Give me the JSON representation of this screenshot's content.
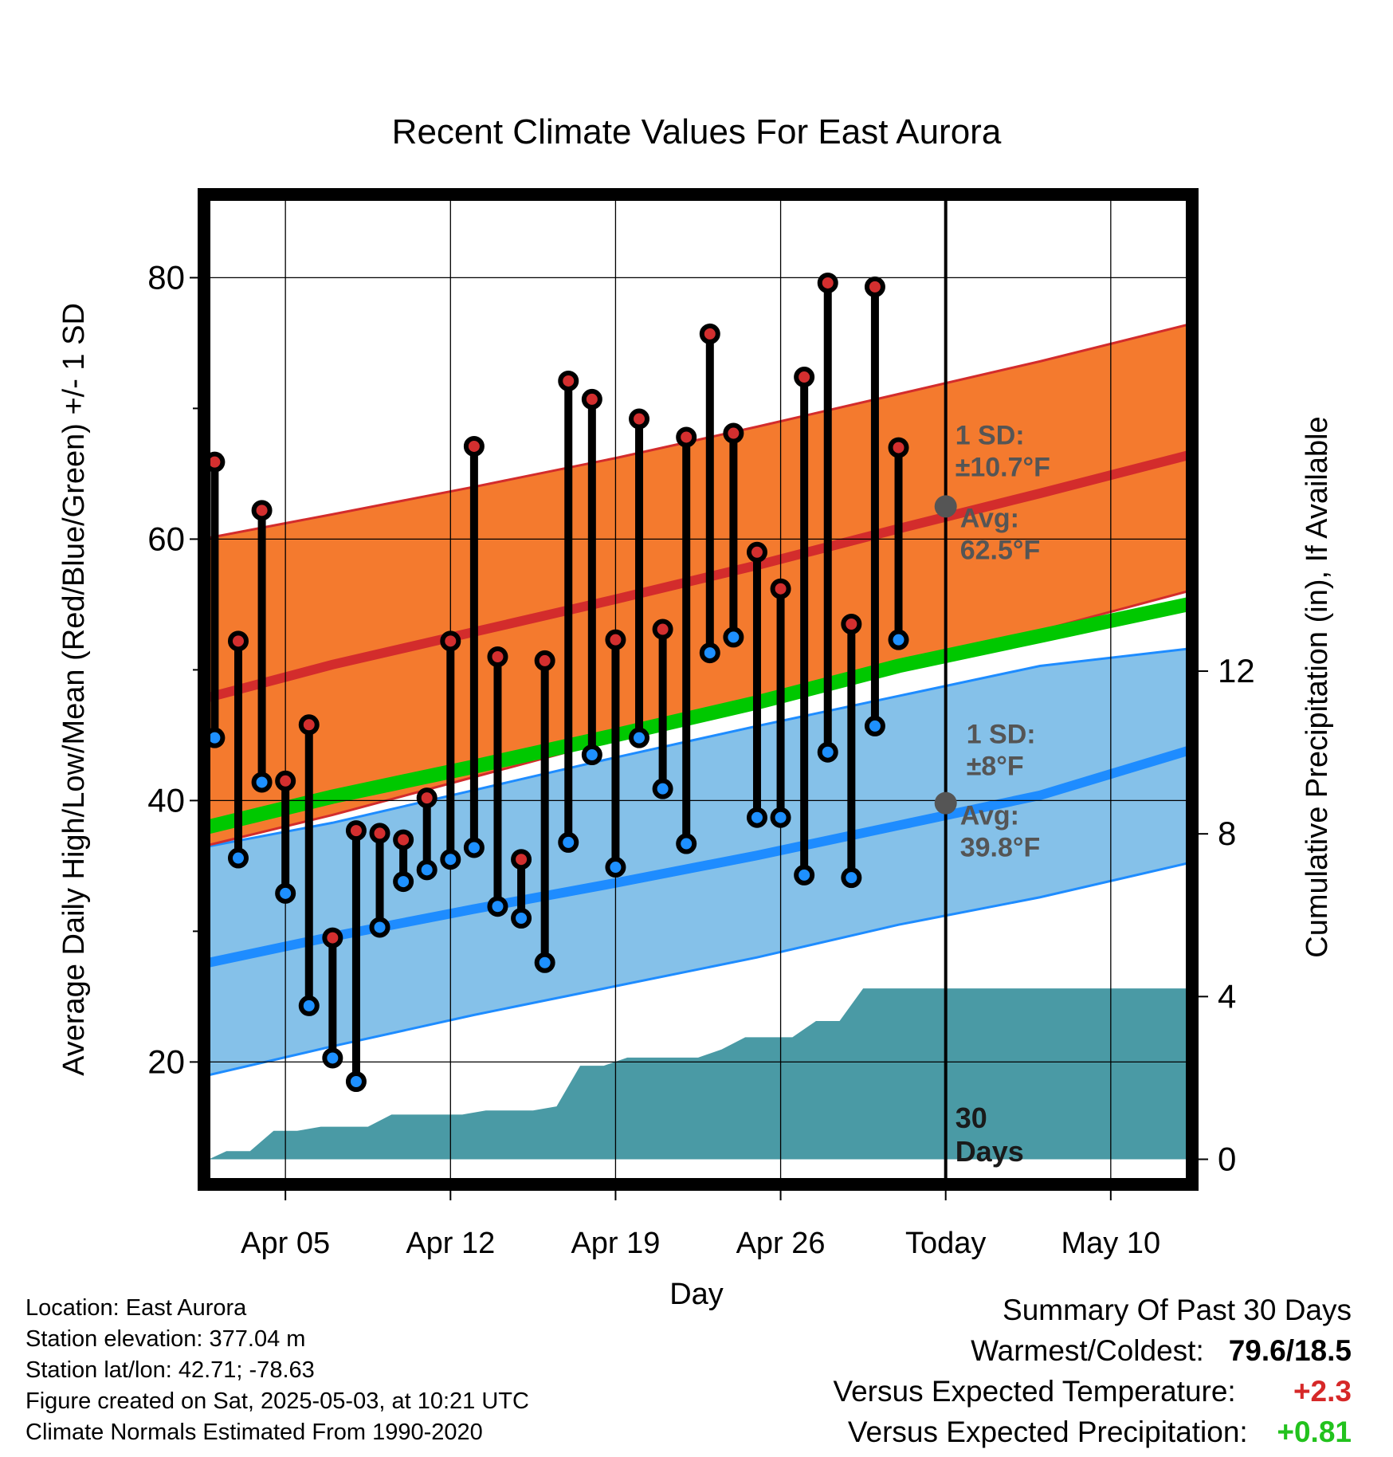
{
  "title": "Recent Climate Values For East Aurora",
  "colors": {
    "high_marker": "#d32f2f",
    "low_marker": "#1e90ff",
    "high_band": "#f47a2e",
    "low_band": "#85c1e9",
    "high_mean_line": "#d32c2c",
    "low_mean_line": "#1e8cff",
    "mean_line": "#00c800",
    "precip_fill": "#4a9aa5",
    "annotation": "#555555",
    "warm_value": "#d62828",
    "precip_value": "#22c21d"
  },
  "chart_data": {
    "type": "line",
    "title": "Recent Climate Values For East Aurora",
    "xlabel": "Day",
    "ylabel": "Average Daily High/Low/Mean (Red/Blue/Green) +/- 1 SD",
    "y2label": "Cumulative Precipitation (in), If Available",
    "ylim": [
      11,
      86
    ],
    "y2lim": [
      -0.5,
      23.6
    ],
    "xlim": [
      0.75,
      42.25
    ],
    "x_ticks": [
      {
        "x": 4,
        "label": "Apr 05"
      },
      {
        "x": 11,
        "label": "Apr 12"
      },
      {
        "x": 18,
        "label": "Apr 19"
      },
      {
        "x": 25,
        "label": "Apr 26"
      },
      {
        "x": 32,
        "label": "Today"
      },
      {
        "x": 39,
        "label": "May 10"
      }
    ],
    "y_ticks": [
      20,
      40,
      60,
      80
    ],
    "y_minor_ticks": [
      30,
      50,
      70
    ],
    "y2_ticks": [
      0,
      4,
      8,
      12
    ],
    "today_x": 32,
    "days_window_label": [
      "30",
      "Days"
    ],
    "normals": {
      "x": [
        0.75,
        6,
        12,
        18,
        24,
        30,
        36,
        42.25
      ],
      "high_mean": [
        47.9,
        50.4,
        52.9,
        55.4,
        58.0,
        60.8,
        63.5,
        66.4
      ],
      "high_upper": [
        60.1,
        61.9,
        64.0,
        66.2,
        68.6,
        71.1,
        73.6,
        76.4
      ],
      "high_lower": [
        36.6,
        38.9,
        41.8,
        44.7,
        47.5,
        50.3,
        53.0,
        56.0
      ],
      "low_mean": [
        27.6,
        29.6,
        31.7,
        33.7,
        35.8,
        38.1,
        40.4,
        43.8
      ],
      "low_upper": [
        36.5,
        38.3,
        40.8,
        43.3,
        45.7,
        48.0,
        50.3,
        51.6
      ],
      "low_lower": [
        19.0,
        21.2,
        23.6,
        25.8,
        28.0,
        30.5,
        32.6,
        35.2
      ],
      "mean": [
        38.0,
        40.3,
        42.6,
        45.0,
        47.5,
        50.3,
        52.6,
        55.0
      ]
    },
    "series": [
      {
        "name": "Daily High",
        "values": [
          65.9,
          52.2,
          62.2,
          41.5,
          45.8,
          29.5,
          37.7,
          37.5,
          37.0,
          40.2,
          52.2,
          67.1,
          51.0,
          35.5,
          50.7,
          72.1,
          70.7,
          52.3,
          69.2,
          53.1,
          67.8,
          75.7,
          68.1,
          59.0,
          56.2,
          72.4,
          79.6,
          53.5,
          79.3,
          67.0
        ]
      },
      {
        "name": "Daily Low",
        "values": [
          44.8,
          35.6,
          41.4,
          32.9,
          24.3,
          20.3,
          18.5,
          30.3,
          33.8,
          34.7,
          35.5,
          36.4,
          31.9,
          31.0,
          27.6,
          36.8,
          43.5,
          34.9,
          44.8,
          40.9,
          36.7,
          51.3,
          52.5,
          38.7,
          38.7,
          34.3,
          43.7,
          34.1,
          45.7,
          52.3
        ]
      },
      {
        "name": "Cumulative Precipitation",
        "values": [
          0.0,
          0.2,
          0.2,
          0.7,
          0.7,
          0.8,
          0.8,
          0.8,
          1.1,
          1.1,
          1.1,
          1.1,
          1.2,
          1.2,
          1.2,
          1.3,
          2.3,
          2.3,
          2.5,
          2.5,
          2.5,
          2.5,
          2.7,
          3.0,
          3.0,
          3.0,
          3.4,
          3.4,
          4.2,
          4.2,
          4.2,
          4.2,
          4.2,
          4.2,
          4.2,
          4.2,
          4.2,
          4.2,
          4.2,
          4.2,
          4.2,
          4.2
        ]
      }
    ],
    "day_x": [
      1,
      2,
      3,
      4,
      5,
      6,
      7,
      8,
      9,
      10,
      11,
      12,
      13,
      14,
      15,
      16,
      17,
      18,
      19,
      20,
      21,
      22,
      23,
      24,
      25,
      26,
      27,
      28,
      29,
      30
    ],
    "precip_x": [
      0.75,
      1.5,
      2.5,
      3.5,
      4.5,
      5.5,
      6.5,
      7.5,
      8.5,
      9.5,
      10.5,
      11.5,
      12.5,
      13.5,
      14.5,
      15.5,
      16.5,
      17.5,
      18.5,
      19.5,
      20.5,
      21.5,
      22.5,
      23.5,
      24.5,
      25.5,
      26.5,
      27.5,
      28.5,
      29.5,
      30.5,
      31.5,
      32.5,
      33.5,
      35,
      36,
      37,
      38,
      39,
      40,
      41,
      42.25
    ],
    "annotations": {
      "high_sd": [
        "1 SD:",
        "±10.7°F"
      ],
      "high_avg": [
        "Avg:",
        "62.5°F"
      ],
      "high_avg_value": 62.5,
      "low_sd": [
        "1 SD:",
        "±8°F"
      ],
      "low_avg": [
        "Avg:",
        "39.8°F"
      ],
      "low_avg_value": 39.8
    }
  },
  "footer": {
    "location": "Location: East Aurora",
    "elevation": "Station elevation: 377.04 m",
    "latlon": "Station lat/lon: 42.71; -78.63",
    "created": "Figure created on Sat, 2025-05-03, at 10:21 UTC",
    "normals": "Climate Normals Estimated From 1990-2020"
  },
  "summary": {
    "title": "Summary Of Past 30 Days",
    "warmest_label": "Warmest/Coldest:",
    "warmest_value": "79.6/18.5",
    "temp_label": "Versus Expected Temperature:",
    "temp_value": "+2.3",
    "precip_label": "Versus Expected Precipitation:",
    "precip_value": "+0.81"
  }
}
